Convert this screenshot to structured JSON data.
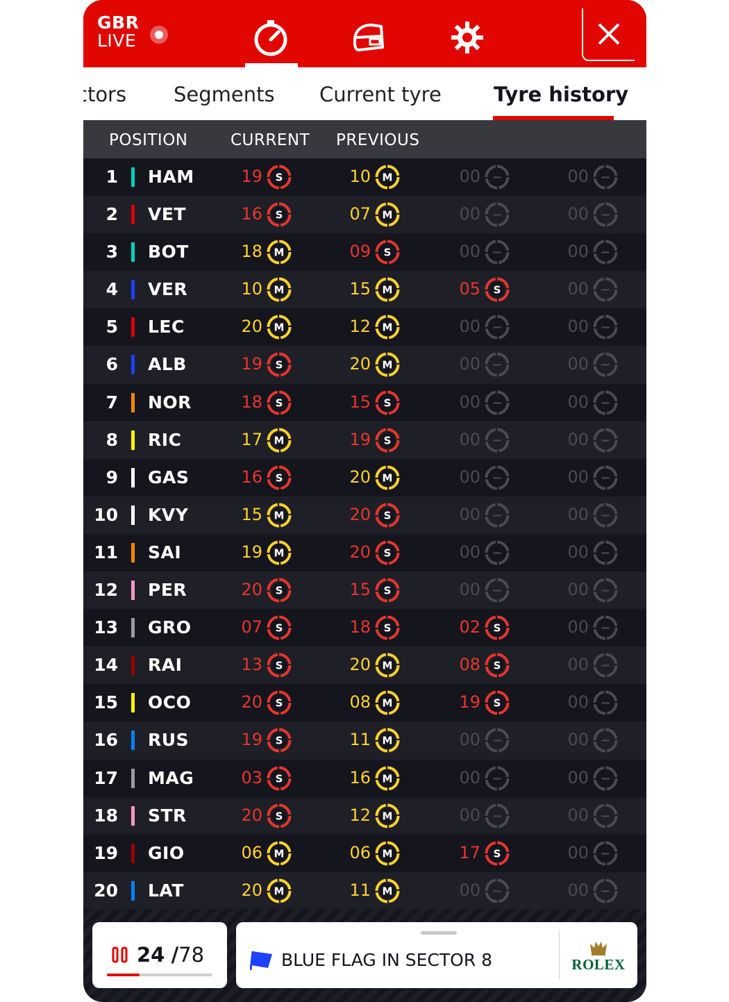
{
  "app": {
    "logo_line1": "GBR",
    "logo_line2": "LIVE"
  },
  "nav": {
    "icons": [
      "timer-icon",
      "car-icon",
      "settings-icon"
    ],
    "active": "timer-icon",
    "close_icon": "close-icon"
  },
  "tabs": {
    "items": [
      {
        "label": "ctors"
      },
      {
        "label": "Segments"
      },
      {
        "label": "Current tyre"
      },
      {
        "label": "Tyre history"
      }
    ],
    "active": "Tyre history"
  },
  "columns": {
    "position": "POSITION",
    "current": "CURRENT",
    "previous": "PREVIOUS"
  },
  "colors": {
    "brand_red": "#e10600",
    "soft": "#e8362b",
    "medium": "#ffd12e",
    "none": "#4a4a52"
  },
  "compounds": {
    "S": {
      "letter": "S",
      "color": "#e8362b"
    },
    "M": {
      "letter": "M",
      "color": "#ffd12e"
    },
    "-": {
      "letter": "−",
      "color": "#4a4a52"
    }
  },
  "rows": [
    {
      "pos": "1",
      "code": "HAM",
      "team": "#00d2be",
      "stints": [
        [
          "19",
          "S"
        ],
        [
          "10",
          "M"
        ],
        [
          "00",
          "-"
        ],
        [
          "00",
          "-"
        ]
      ]
    },
    {
      "pos": "2",
      "code": "VET",
      "team": "#dc0000",
      "stints": [
        [
          "16",
          "S"
        ],
        [
          "07",
          "M"
        ],
        [
          "00",
          "-"
        ],
        [
          "00",
          "-"
        ]
      ]
    },
    {
      "pos": "3",
      "code": "BOT",
      "team": "#00d2be",
      "stints": [
        [
          "18",
          "M"
        ],
        [
          "09",
          "S"
        ],
        [
          "00",
          "-"
        ],
        [
          "00",
          "-"
        ]
      ]
    },
    {
      "pos": "4",
      "code": "VER",
      "team": "#1e41ff",
      "stints": [
        [
          "10",
          "M"
        ],
        [
          "15",
          "M"
        ],
        [
          "05",
          "S"
        ],
        [
          "00",
          "-"
        ]
      ]
    },
    {
      "pos": "5",
      "code": "LEC",
      "team": "#dc0000",
      "stints": [
        [
          "20",
          "M"
        ],
        [
          "12",
          "M"
        ],
        [
          "00",
          "-"
        ],
        [
          "00",
          "-"
        ]
      ]
    },
    {
      "pos": "6",
      "code": "ALB",
      "team": "#1e41ff",
      "stints": [
        [
          "19",
          "S"
        ],
        [
          "20",
          "M"
        ],
        [
          "00",
          "-"
        ],
        [
          "00",
          "-"
        ]
      ]
    },
    {
      "pos": "7",
      "code": "NOR",
      "team": "#ff8700",
      "stints": [
        [
          "18",
          "S"
        ],
        [
          "15",
          "S"
        ],
        [
          "00",
          "-"
        ],
        [
          "00",
          "-"
        ]
      ]
    },
    {
      "pos": "8",
      "code": "RIC",
      "team": "#fff500",
      "stints": [
        [
          "17",
          "M"
        ],
        [
          "19",
          "S"
        ],
        [
          "00",
          "-"
        ],
        [
          "00",
          "-"
        ]
      ]
    },
    {
      "pos": "9",
      "code": "GAS",
      "team": "#ffffff",
      "stints": [
        [
          "16",
          "S"
        ],
        [
          "20",
          "M"
        ],
        [
          "00",
          "-"
        ],
        [
          "00",
          "-"
        ]
      ]
    },
    {
      "pos": "10",
      "code": "KVY",
      "team": "#ffffff",
      "stints": [
        [
          "15",
          "M"
        ],
        [
          "20",
          "S"
        ],
        [
          "00",
          "-"
        ],
        [
          "00",
          "-"
        ]
      ]
    },
    {
      "pos": "11",
      "code": "SAI",
      "team": "#ff8700",
      "stints": [
        [
          "19",
          "M"
        ],
        [
          "20",
          "S"
        ],
        [
          "00",
          "-"
        ],
        [
          "00",
          "-"
        ]
      ]
    },
    {
      "pos": "12",
      "code": "PER",
      "team": "#f596c8",
      "stints": [
        [
          "20",
          "S"
        ],
        [
          "15",
          "S"
        ],
        [
          "00",
          "-"
        ],
        [
          "00",
          "-"
        ]
      ]
    },
    {
      "pos": "13",
      "code": "GRO",
      "team": "#9b9b9b",
      "stints": [
        [
          "07",
          "S"
        ],
        [
          "18",
          "S"
        ],
        [
          "02",
          "S"
        ],
        [
          "00",
          "-"
        ]
      ]
    },
    {
      "pos": "14",
      "code": "RAI",
      "team": "#9b0000",
      "stints": [
        [
          "13",
          "S"
        ],
        [
          "20",
          "M"
        ],
        [
          "08",
          "S"
        ],
        [
          "00",
          "-"
        ]
      ]
    },
    {
      "pos": "15",
      "code": "OCO",
      "team": "#fff500",
      "stints": [
        [
          "20",
          "S"
        ],
        [
          "08",
          "M"
        ],
        [
          "19",
          "S"
        ],
        [
          "00",
          "-"
        ]
      ]
    },
    {
      "pos": "16",
      "code": "RUS",
      "team": "#0082fa",
      "stints": [
        [
          "19",
          "S"
        ],
        [
          "11",
          "M"
        ],
        [
          "00",
          "-"
        ],
        [
          "00",
          "-"
        ]
      ]
    },
    {
      "pos": "17",
      "code": "MAG",
      "team": "#9b9b9b",
      "stints": [
        [
          "03",
          "S"
        ],
        [
          "16",
          "M"
        ],
        [
          "00",
          "-"
        ],
        [
          "00",
          "-"
        ]
      ]
    },
    {
      "pos": "18",
      "code": "STR",
      "team": "#f596c8",
      "stints": [
        [
          "20",
          "S"
        ],
        [
          "12",
          "M"
        ],
        [
          "00",
          "-"
        ],
        [
          "00",
          "-"
        ]
      ]
    },
    {
      "pos": "19",
      "code": "GIO",
      "team": "#9b0000",
      "stints": [
        [
          "06",
          "M"
        ],
        [
          "06",
          "M"
        ],
        [
          "17",
          "S"
        ],
        [
          "00",
          "-"
        ]
      ]
    },
    {
      "pos": "20",
      "code": "LAT",
      "team": "#0082fa",
      "stints": [
        [
          "20",
          "M"
        ],
        [
          "11",
          "M"
        ],
        [
          "00",
          "-"
        ],
        [
          "00",
          "-"
        ]
      ]
    }
  ],
  "footer": {
    "lap_current": "24",
    "lap_separator": "/",
    "lap_total": "78",
    "lap_progress": 0.31,
    "message": "BLUE FLAG IN SECTOR 8",
    "flag_color": "#1e41ff",
    "sponsor": "ROLEX"
  }
}
